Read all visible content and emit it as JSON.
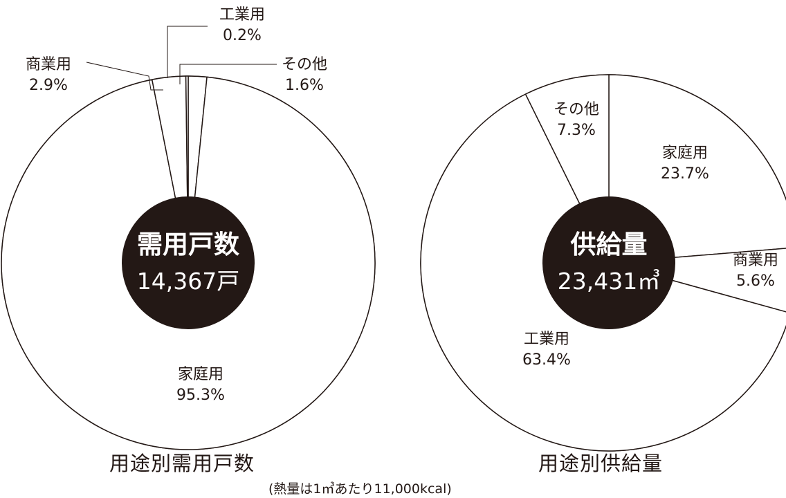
{
  "chart_data": [
    {
      "type": "pie",
      "title": "用途別需用戸数",
      "center_label": "需用戸数",
      "center_value": "14,367戸",
      "slices": [
        {
          "name": "家庭用",
          "value": 95.3,
          "label": "95.3%"
        },
        {
          "name": "商業用",
          "value": 2.9,
          "label": "2.9%"
        },
        {
          "name": "工業用",
          "value": 0.2,
          "label": "0.2%"
        },
        {
          "name": "その他",
          "value": 1.6,
          "label": "1.6%"
        }
      ]
    },
    {
      "type": "pie",
      "title": "用途別供給量",
      "center_label": "供給量",
      "center_value": "23,431㎥",
      "slices": [
        {
          "name": "家庭用",
          "value": 23.7,
          "label": "23.7%"
        },
        {
          "name": "商業用",
          "value": 5.6,
          "label": "5.6%"
        },
        {
          "name": "工業用",
          "value": 63.4,
          "label": "63.4%"
        },
        {
          "name": "その他",
          "value": 7.3,
          "label": "7.3%"
        }
      ]
    }
  ],
  "footnote": "(熱量は1㎥あたり11,000kcal)",
  "colors": {
    "line": "#231815",
    "center_fill": "#231815",
    "center_text": "#ffffff",
    "background": "#ffffff"
  }
}
